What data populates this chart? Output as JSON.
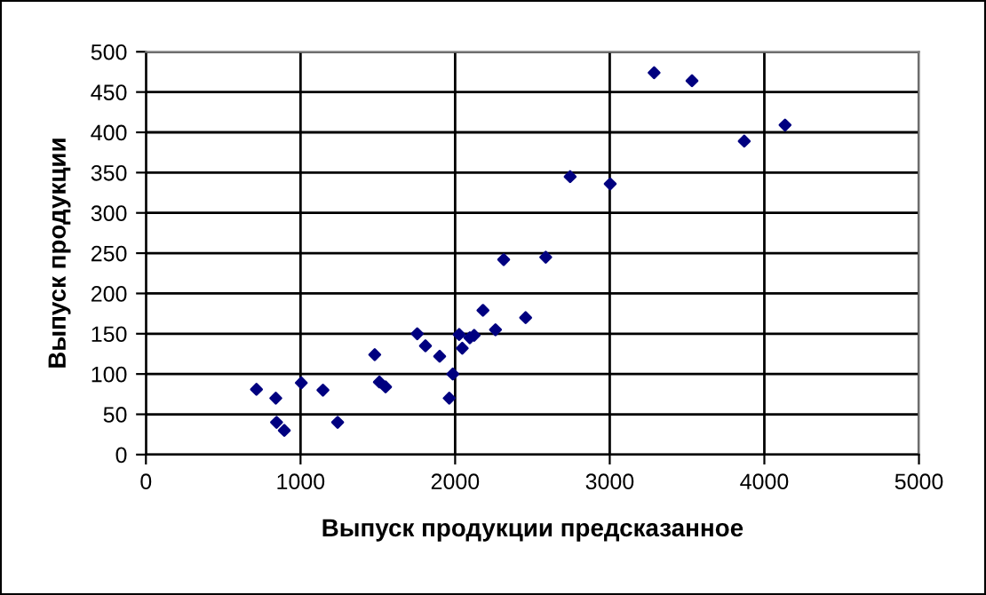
{
  "chart_data": {
    "type": "scatter",
    "xlabel": "Выпуск продукции предсказанное",
    "ylabel": "Выпуск продукции",
    "x": [
      715,
      840,
      845,
      895,
      1005,
      1145,
      1240,
      1480,
      1510,
      1550,
      1755,
      1808,
      1900,
      1962,
      1985,
      2026,
      2046,
      2095,
      2123,
      2180,
      2261,
      2314,
      2456,
      2586,
      2744,
      3003,
      3287,
      3532,
      3870,
      4134
    ],
    "series": [
      {
        "color": "#000080",
        "values": [
          81,
          70,
          40,
          30,
          89,
          80,
          40,
          124,
          90,
          84,
          150,
          135,
          122,
          70,
          100,
          149,
          132,
          145,
          148,
          179,
          155,
          242,
          170,
          245,
          345,
          336,
          474,
          464,
          389,
          409
        ]
      }
    ],
    "xlim": [
      0,
      5000
    ],
    "xticks": [
      0,
      1000,
      2000,
      3000,
      4000,
      5000
    ],
    "ylim": [
      0,
      500
    ],
    "yticks": [
      0,
      50,
      100,
      150,
      200,
      250,
      300,
      350,
      400,
      450,
      500
    ],
    "grid": true,
    "marker": "diamond",
    "legend": false
  }
}
